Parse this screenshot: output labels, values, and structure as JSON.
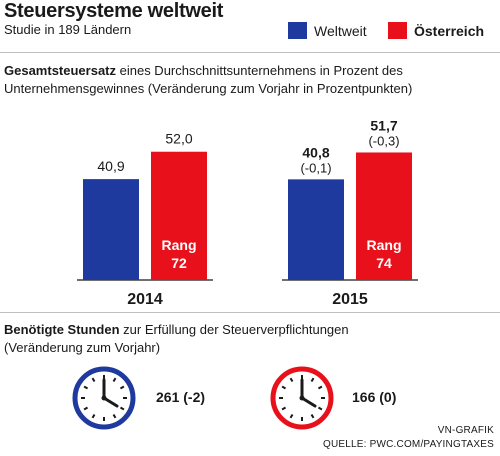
{
  "header": {
    "title": "Steuersysteme weltweit",
    "subtitle": "Studie in 189 Ländern"
  },
  "legend": [
    {
      "name": "Weltweit",
      "color": "#1f3a9e"
    },
    {
      "name": "Österreich",
      "color": "#e8111b"
    }
  ],
  "section1": {
    "bold": "Gesamtsteuersatz",
    "rest": " eines Durchschnittsunternehmens in Prozent des",
    "line2": "Unternehmensgewinnes (Veränderung zum Vorjahr in Prozentpunkten)"
  },
  "chart_data": {
    "type": "bar",
    "title": "",
    "categories": [
      "2014",
      "2015"
    ],
    "ylim": [
      0,
      60
    ],
    "series": [
      {
        "name": "Weltweit",
        "color": "#1f3a9e",
        "values": [
          40.9,
          40.8
        ],
        "labels": [
          "40,9",
          "40,8"
        ],
        "changes": [
          "",
          "(-0,1)"
        ]
      },
      {
        "name": "Österreich",
        "color": "#e8111b",
        "values": [
          52.0,
          51.7
        ],
        "labels": [
          "52,0",
          "51,7"
        ],
        "changes": [
          "",
          "(-0,3)"
        ]
      }
    ],
    "rank_label": "Rang",
    "ranks": [
      "72",
      "74"
    ],
    "legend_position": "top-right",
    "grid": false
  },
  "section2": {
    "bold": "Benötigte Stunden",
    "rest": " zur Erfüllung der Steuerverpflichtungen",
    "line2": "(Veränderung zum Vorjahr)"
  },
  "clocks": [
    {
      "icon": "clock-icon",
      "color": "#1f3a9e",
      "value": "261 (-2)"
    },
    {
      "icon": "clock-icon",
      "color": "#e8111b",
      "value": "166 (0)"
    }
  ],
  "credits": {
    "line1": "VN-GRAFIK",
    "line2": "QUELLE: PWC.COM/PAYINGTAXES"
  }
}
